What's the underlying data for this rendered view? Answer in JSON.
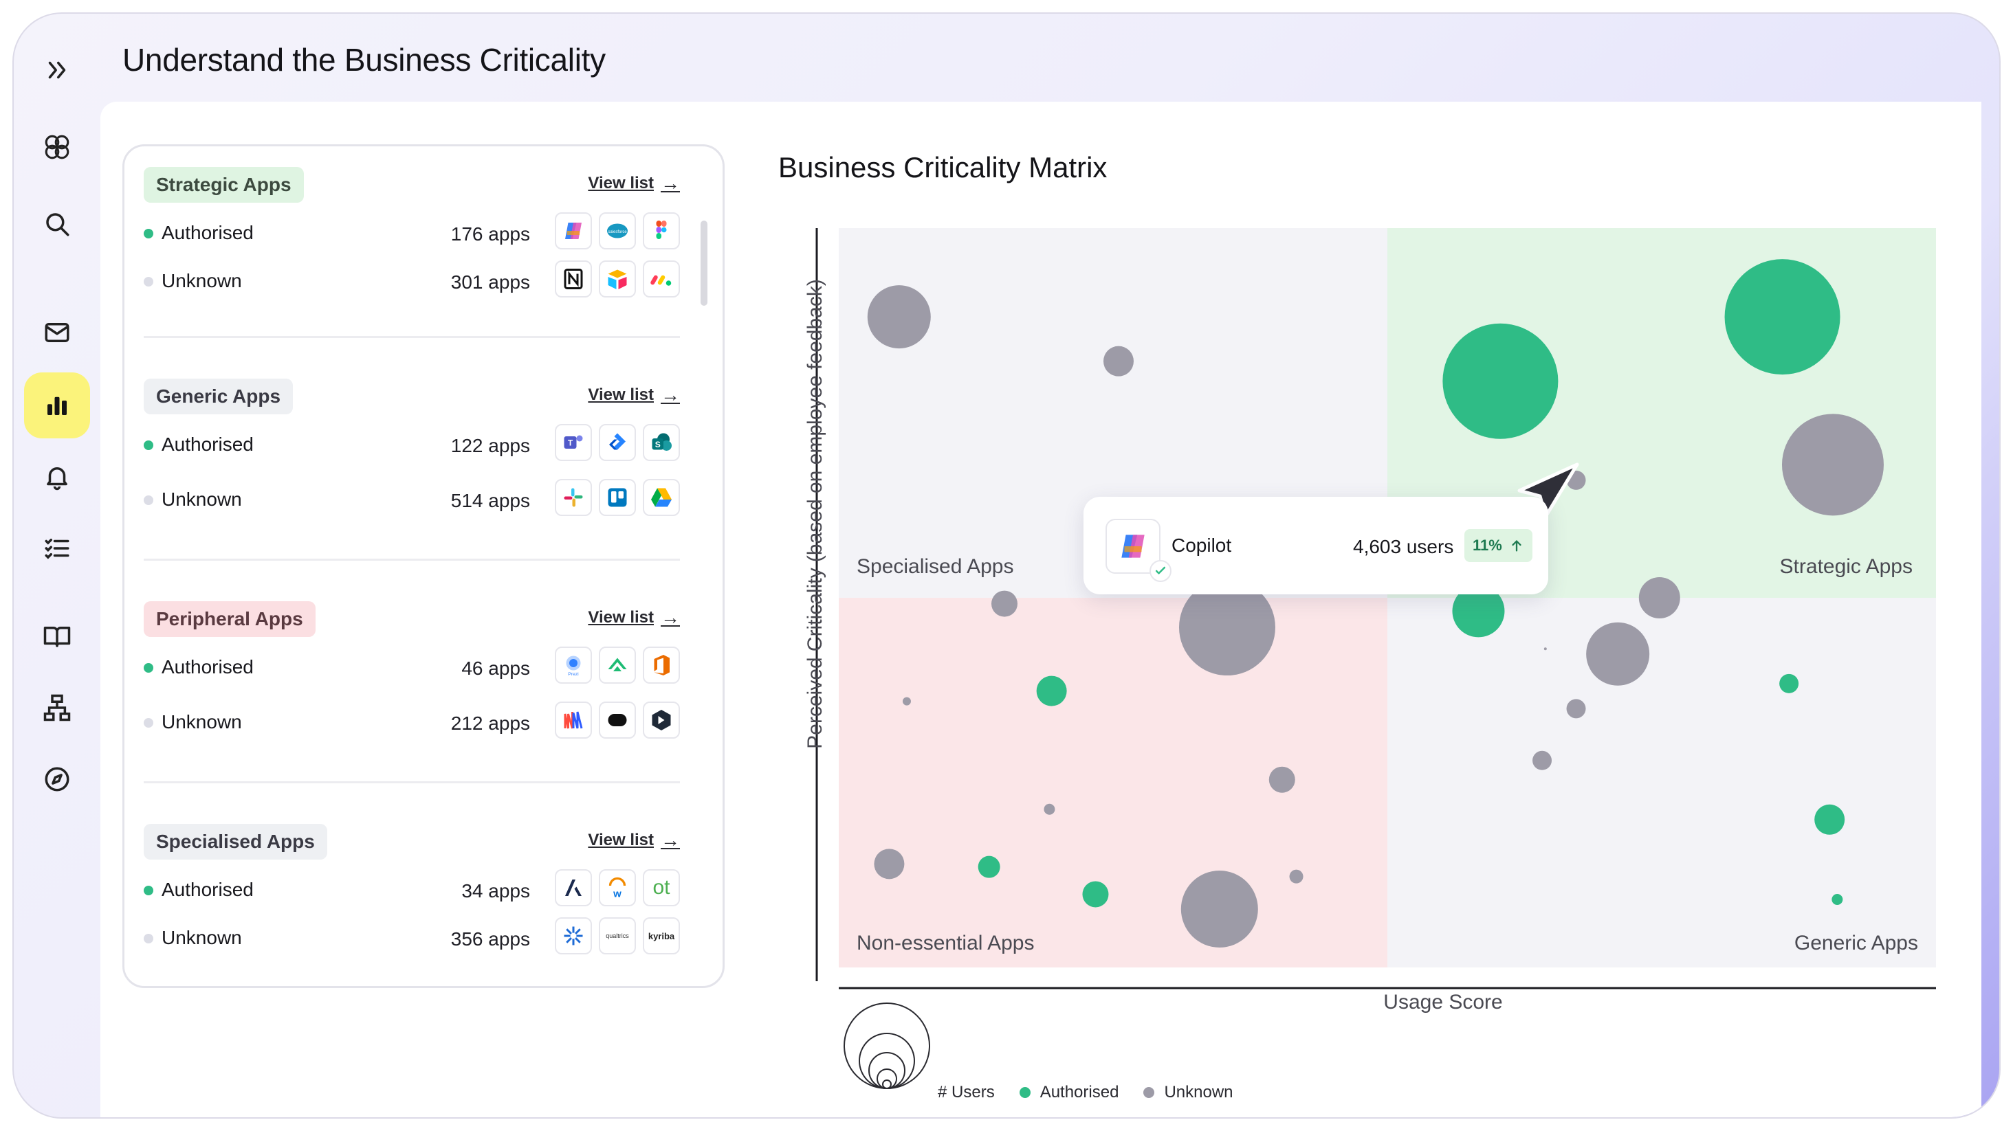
{
  "page": {
    "title": "Understand the Business Criticality"
  },
  "sidebar": {
    "items": [
      {
        "name": "expand",
        "icon": "double-chevron-right-icon"
      },
      {
        "name": "logo",
        "icon": "logo-icon"
      },
      {
        "name": "search",
        "icon": "search-icon"
      },
      {
        "name": "inbox",
        "icon": "mail-icon"
      },
      {
        "name": "analytics",
        "icon": "bar-chart-icon",
        "active": true
      },
      {
        "name": "notifications",
        "icon": "bell-icon"
      },
      {
        "name": "tasks",
        "icon": "checklist-icon"
      },
      {
        "name": "library",
        "icon": "book-icon"
      },
      {
        "name": "org",
        "icon": "hierarchy-icon"
      },
      {
        "name": "explore",
        "icon": "compass-icon"
      }
    ]
  },
  "list": {
    "view_list_label": "View list",
    "groups": [
      {
        "tag": "Strategic Apps",
        "rows": [
          {
            "status": "Authorised",
            "count": "176 apps",
            "icons": [
              "copilot-icon",
              "salesforce-icon",
              "figma-icon"
            ]
          },
          {
            "status": "Unknown",
            "count": "301 apps",
            "icons": [
              "notion-icon",
              "airtable-icon",
              "monday-icon"
            ]
          }
        ]
      },
      {
        "tag": "Generic Apps",
        "rows": [
          {
            "status": "Authorised",
            "count": "122 apps",
            "icons": [
              "teams-icon",
              "jira-icon",
              "sharepoint-icon"
            ]
          },
          {
            "status": "Unknown",
            "count": "514 apps",
            "icons": [
              "slack-icon",
              "trello-icon",
              "google-drive-icon"
            ]
          }
        ]
      },
      {
        "tag": "Peripheral Apps",
        "rows": [
          {
            "status": "Authorised",
            "count": "46 apps",
            "icons": [
              "prezi-icon",
              "smartsheet-icon",
              "office-icon"
            ]
          },
          {
            "status": "Unknown",
            "count": "212 apps",
            "icons": [
              "miro-icon",
              "intercom-icon",
              "cursor-icon"
            ]
          }
        ]
      },
      {
        "tag": "Specialised Apps",
        "rows": [
          {
            "status": "Authorised",
            "count": "34 apps",
            "icons": [
              "asana-icon",
              "workday-icon",
              "otter-icon"
            ]
          },
          {
            "status": "Unknown",
            "count": "356 apps",
            "icons": [
              "zendesk-icon",
              "qualtrics-icon",
              "kyriba-icon"
            ]
          }
        ]
      }
    ],
    "icon_text": {
      "qualtrics": "qualtrics",
      "kyriba": "kyriba",
      "otter": "ot",
      "prezi": "Prezi"
    }
  },
  "matrix": {
    "title": "Business Criticality Matrix",
    "quadrants": [
      "Specialised Apps",
      "Strategic Apps",
      "Non-essential Apps",
      "Generic Apps"
    ],
    "colors": {
      "authorised": "#2fbc86",
      "unknown": "#9d9ba7",
      "strategic_bg": "#e2f5e5",
      "nonessential_bg": "#fbe6e8",
      "neutral_bg": "#f3f3f7"
    },
    "tooltip": {
      "app": "Copilot",
      "users": "4,603 users",
      "change": "11%"
    },
    "legend": {
      "size": "# Users",
      "authorised": "Authorised",
      "unknown": "Unknown"
    }
  },
  "chart_data": {
    "type": "scatter",
    "title": "Business Criticality Matrix",
    "xlabel": "Usage Score",
    "ylabel": "Perceived Criticality (based on employee feedback)",
    "xlim": [
      0,
      100
    ],
    "ylim": [
      0,
      100
    ],
    "series": [
      {
        "name": "Authorised",
        "points": [
          {
            "x": 60.3,
            "y": 79.3,
            "size": 84
          },
          {
            "x": 86.0,
            "y": 88.0,
            "size": 84
          },
          {
            "x": 58.3,
            "y": 48.2,
            "size": 38
          },
          {
            "x": 19.4,
            "y": 37.4,
            "size": 22
          },
          {
            "x": 13.7,
            "y": 13.6,
            "size": 16
          },
          {
            "x": 23.4,
            "y": 9.9,
            "size": 19
          },
          {
            "x": 86.6,
            "y": 38.4,
            "size": 14
          },
          {
            "x": 90.3,
            "y": 20.0,
            "size": 22
          },
          {
            "x": 91.0,
            "y": 9.2,
            "size": 8
          }
        ]
      },
      {
        "name": "Unknown",
        "points": [
          {
            "x": 5.5,
            "y": 88.0,
            "size": 46
          },
          {
            "x": 25.5,
            "y": 82.0,
            "size": 22
          },
          {
            "x": 90.6,
            "y": 68.0,
            "size": 74
          },
          {
            "x": 67.2,
            "y": 65.9,
            "size": 14
          },
          {
            "x": 74.8,
            "y": 50.0,
            "size": 30
          },
          {
            "x": 71.0,
            "y": 42.4,
            "size": 46
          },
          {
            "x": 15.1,
            "y": 49.2,
            "size": 19
          },
          {
            "x": 35.4,
            "y": 46.0,
            "size": 70
          },
          {
            "x": 6.2,
            "y": 36.0,
            "size": 6
          },
          {
            "x": 67.2,
            "y": 35.0,
            "size": 14
          },
          {
            "x": 64.1,
            "y": 28.0,
            "size": 14
          },
          {
            "x": 40.4,
            "y": 25.4,
            "size": 19
          },
          {
            "x": 19.2,
            "y": 21.4,
            "size": 8
          },
          {
            "x": 4.6,
            "y": 14.0,
            "size": 22
          },
          {
            "x": 41.7,
            "y": 12.3,
            "size": 10
          },
          {
            "x": 34.7,
            "y": 7.9,
            "size": 56
          },
          {
            "x": 64.4,
            "y": 43.1,
            "size": 2
          }
        ]
      }
    ],
    "grid": false,
    "legend_position": "bottom-left"
  }
}
